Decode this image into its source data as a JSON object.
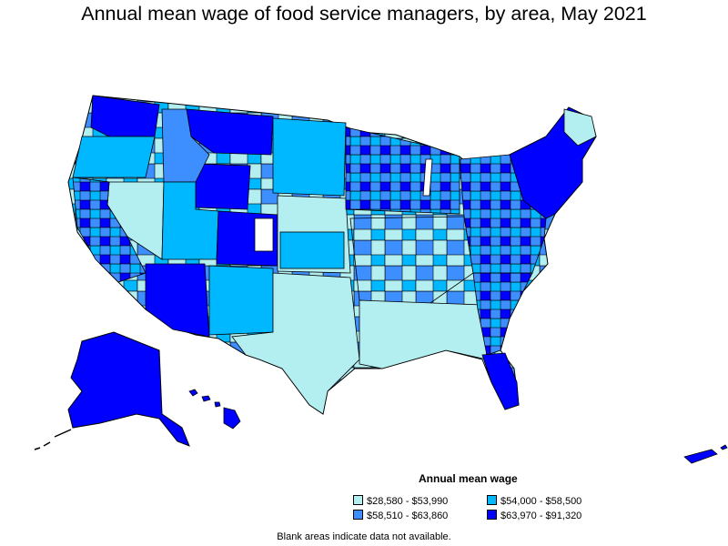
{
  "title": "Annual mean wage of food service managers, by area, May 2021",
  "legend": {
    "title": "Annual mean wage",
    "items": [
      {
        "label": "$28,580 - $53,990",
        "color": "#b3eef0"
      },
      {
        "label": "$54,000 - $58,500",
        "color": "#00b8ff"
      },
      {
        "label": "$58,510 - $63,860",
        "color": "#3d8eff"
      },
      {
        "label": "$63,970 - $91,320",
        "color": "#0000ff"
      }
    ]
  },
  "footnote": "Blank areas indicate data not available."
}
